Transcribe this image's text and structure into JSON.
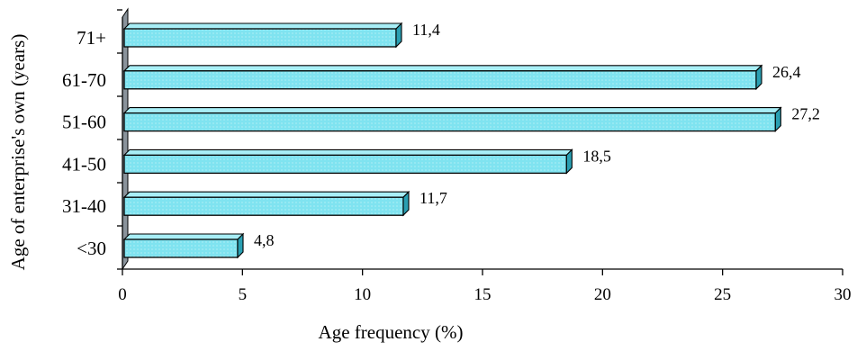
{
  "chart_data": {
    "type": "bar",
    "orientation": "horizontal",
    "style": "3d",
    "categories": [
      "<30",
      "31-40",
      "41-50",
      "51-60",
      "61-70",
      "71+"
    ],
    "values": [
      4.8,
      11.7,
      18.5,
      27.2,
      26.4,
      11.4
    ],
    "value_labels": [
      "4,8",
      "11,7",
      "18,5",
      "27,2",
      "26,4",
      "11,4"
    ],
    "xlabel": "Age frequency (%)",
    "ylabel": "Age of  enterprise's own (years)",
    "xlim": [
      0,
      30
    ],
    "xticks": [
      0,
      5,
      10,
      15,
      20,
      25,
      30
    ],
    "xtick_labels": [
      "0",
      "5",
      "10",
      "15",
      "20",
      "25",
      "30"
    ],
    "grid": false,
    "legend": "none",
    "colors": {
      "bar_front": "#7fe3f0",
      "bar_top": "#a8eef6",
      "bar_side": "#2a9fb2",
      "wall": "#8a939b",
      "outline": "#000000"
    }
  }
}
